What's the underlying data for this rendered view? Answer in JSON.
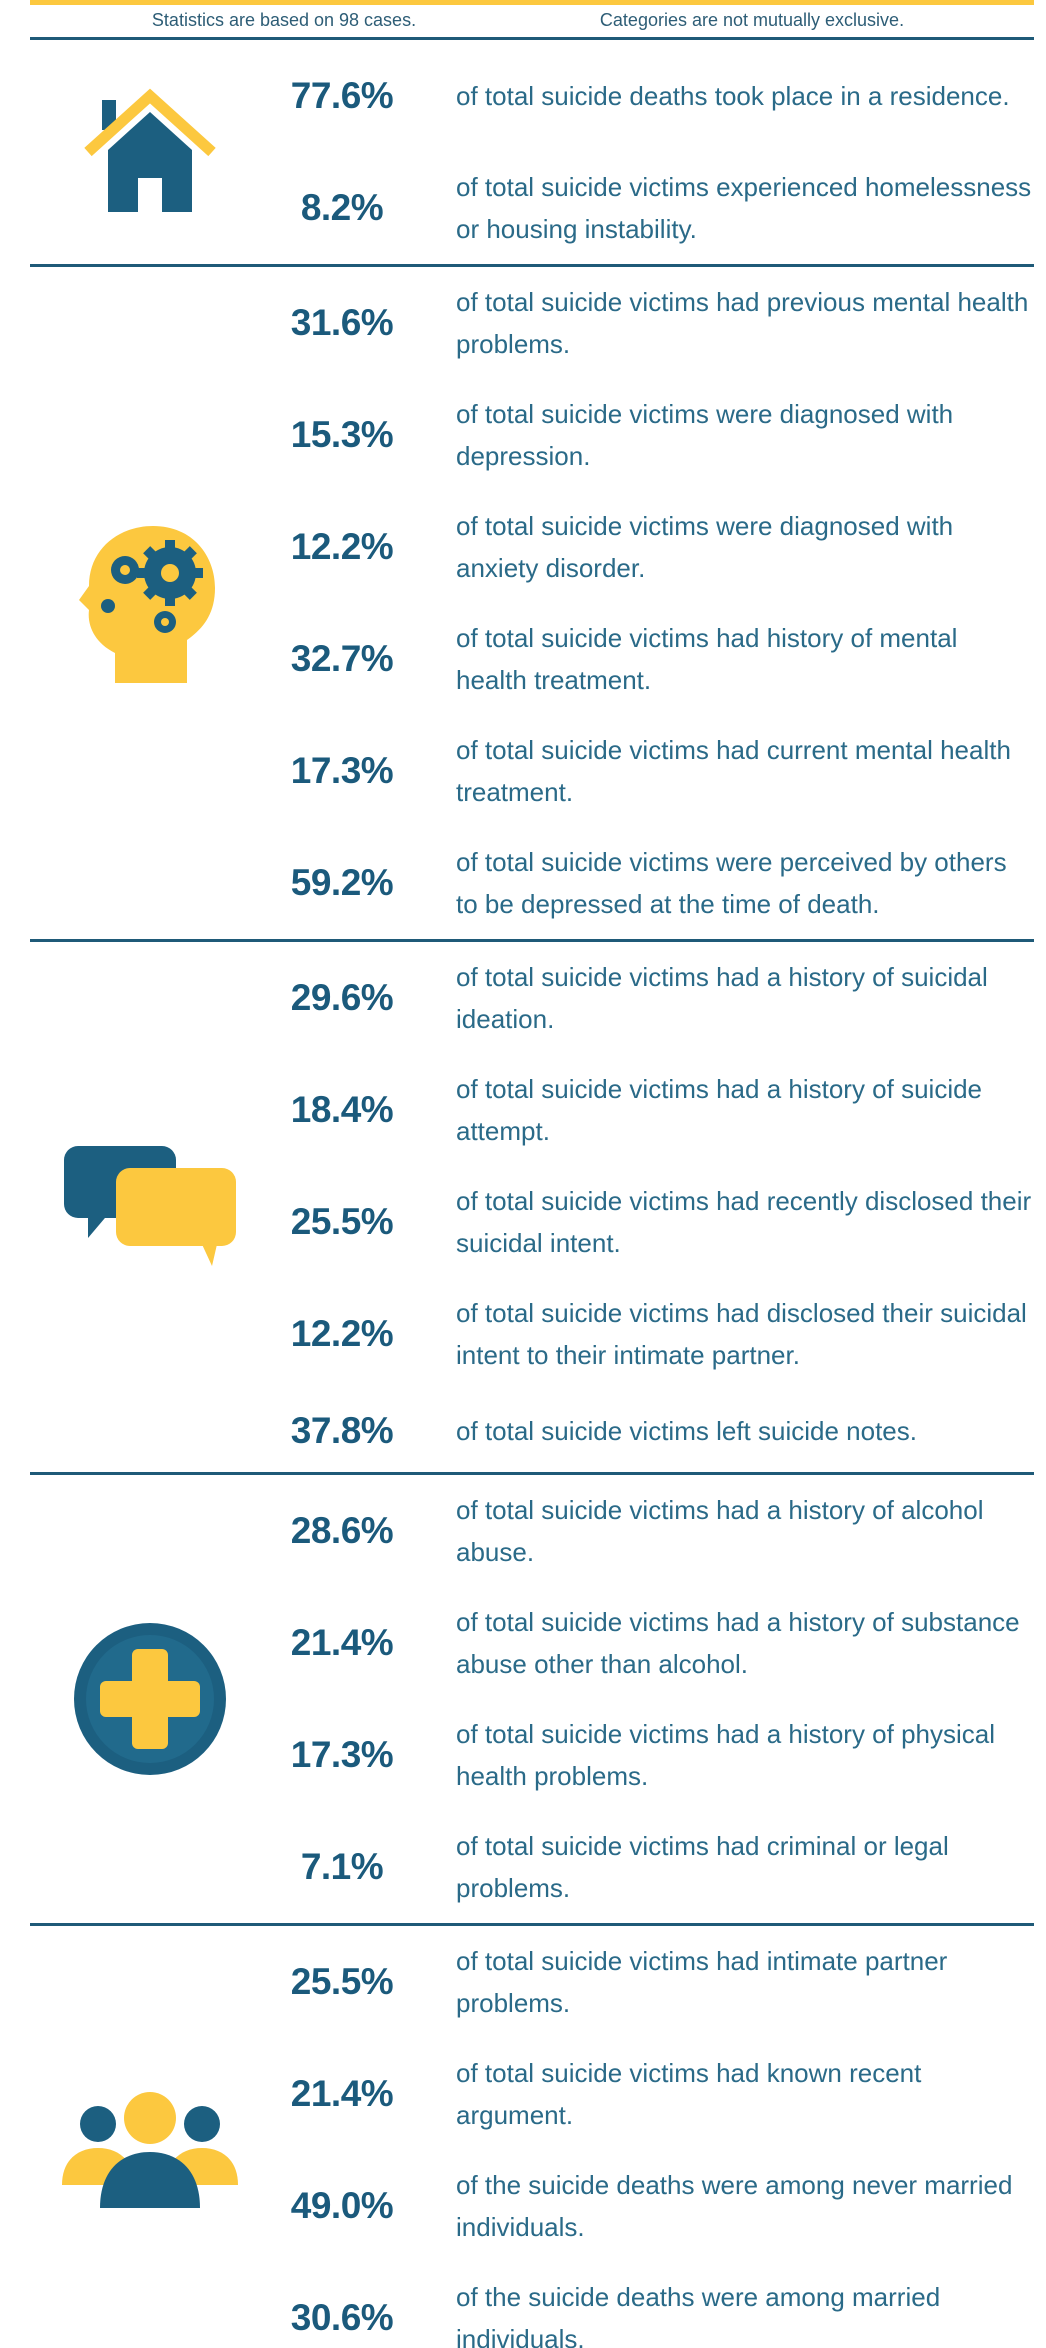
{
  "header": {
    "notes": [
      "Statistics are based on 98 cases.",
      "Categories are not mutually exclusive."
    ]
  },
  "sections": [
    {
      "rows": [
        {
          "value": "77.6%",
          "text": "of total suicide deaths took place in a residence."
        },
        {
          "value": "8.2%",
          "text": "of total suicide victims experienced homelessness or housing instability."
        }
      ]
    },
    {
      "rows": [
        {
          "value": "31.6%",
          "text": "of total suicide victims had previous mental health problems."
        },
        {
          "value": "15.3%",
          "text": "of total suicide victims were diagnosed with depression."
        },
        {
          "value": "12.2%",
          "text": "of total suicide victims were diagnosed with anxiety disorder."
        },
        {
          "value": "32.7%",
          "text": "of total suicide victims had history of mental health treatment."
        },
        {
          "value": "17.3%",
          "text": "of total suicide victims had current mental health treatment."
        },
        {
          "value": "59.2%",
          "text": "of total suicide victims were perceived by others to be depressed at the time of death."
        }
      ]
    },
    {
      "rows": [
        {
          "value": "29.6%",
          "text": "of total suicide victims had a history of suicidal ideation."
        },
        {
          "value": "18.4%",
          "text": "of total suicide victims had a history of suicide attempt."
        },
        {
          "value": "25.5%",
          "text": "of total suicide victims had recently disclosed their suicidal intent."
        },
        {
          "value": "12.2%",
          "text": "of total suicide victims had disclosed their suicidal intent to their intimate partner."
        },
        {
          "value": "37.8%",
          "text": "of total suicide victims left suicide notes."
        }
      ]
    },
    {
      "rows": [
        {
          "value": "28.6%",
          "text": "of total suicide victims had a history of alcohol abuse."
        },
        {
          "value": "21.4%",
          "text": "of total suicide victims had a history of substance abuse other than alcohol."
        },
        {
          "value": "17.3%",
          "text": "of total suicide victims had a history of physical health problems."
        },
        {
          "value": "7.1%",
          "text": "of total suicide victims had criminal or legal problems."
        }
      ]
    },
    {
      "rows": [
        {
          "value": "25.5%",
          "text": "of total suicide victims had intimate partner problems."
        },
        {
          "value": "21.4%",
          "text": "of total suicide victims had known recent argument."
        },
        {
          "value": "49.0%",
          "text": "of the suicide deaths were among never married individuals."
        },
        {
          "value": "30.6%",
          "text": "of the suicide deaths were among married individuals."
        }
      ]
    }
  ]
}
